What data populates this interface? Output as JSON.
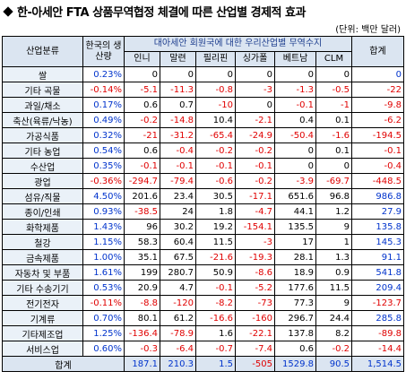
{
  "header": {
    "title": "한-아세안 FTA 상품무역협정 체결에 따른 산업별 경제적 효과",
    "unit": "(단위: 백만 달러)"
  },
  "table": {
    "head": {
      "category": "산업분류",
      "production": "한국의 생산량",
      "group": "대아세안 회원국에 대한 우리산업별 무역수지",
      "countries": [
        "인니",
        "말련",
        "필리핀",
        "싱가폴",
        "베트남",
        "CLM"
      ],
      "total": "합계"
    },
    "rows": [
      [
        "쌀",
        "0.23%",
        "0",
        "0",
        "0",
        "0",
        "0",
        "0",
        "0"
      ],
      [
        "기타 곡물",
        "-0.14%",
        "-5.1",
        "-11.3",
        "-0.8",
        "-3",
        "-1.3",
        "-0.5",
        "-22"
      ],
      [
        "과일/채소",
        "0.17%",
        "0.6",
        "0.7",
        "-10",
        "0",
        "-0.1",
        "-1",
        "-9.8"
      ],
      [
        "축산(육류/낙농)",
        "0.49%",
        "-0.2",
        "-14.8",
        "10.4",
        "-2.1",
        "0.4",
        "0.1",
        "-6.2"
      ],
      [
        "가공식품",
        "0.32%",
        "-21",
        "-31.2",
        "-65.4",
        "-24.9",
        "-50.4",
        "-1.6",
        "-194.5"
      ],
      [
        "기타 농업",
        "0.54%",
        "0.6",
        "-0.4",
        "-0.2",
        "-0.2",
        "0",
        "0.1",
        "-0.1"
      ],
      [
        "수산업",
        "0.35%",
        "-0.1",
        "-0.1",
        "-0.1",
        "-0.1",
        "0",
        "0",
        "-0.4"
      ],
      [
        "광업",
        "-0.36%",
        "-294.7",
        "-79.4",
        "-0.6",
        "-0.2",
        "-3.9",
        "-69.7",
        "-448.5"
      ],
      [
        "섬유/직물",
        "4.50%",
        "201.6",
        "23.4",
        "30.5",
        "-17.1",
        "651.6",
        "96.8",
        "986.8"
      ],
      [
        "종이/인쇄",
        "0.93%",
        "-38.5",
        "24",
        "1.8",
        "-4.7",
        "44.1",
        "1.2",
        "27.9"
      ],
      [
        "화학제품",
        "1.43%",
        "96",
        "30.2",
        "19.2",
        "-154.1",
        "135.5",
        "9",
        "135.8"
      ],
      [
        "철강",
        "1.15%",
        "58.3",
        "60.4",
        "11.5",
        "-3",
        "17",
        "1",
        "145.3"
      ],
      [
        "금속제품",
        "1.00%",
        "35.1",
        "67.5",
        "-21.6",
        "-19.3",
        "28.1",
        "1.3",
        "91.1"
      ],
      [
        "자동차 및 부품",
        "1.61%",
        "199",
        "280.7",
        "50.9",
        "-8.6",
        "18.9",
        "0.9",
        "541.8"
      ],
      [
        "기타 수송기기",
        "0.53%",
        "20.9",
        "4.7",
        "-0.1",
        "-5.2",
        "177.6",
        "11.5",
        "209.4"
      ],
      [
        "전기전자",
        "-0.11%",
        "-8.8",
        "-120",
        "-8.2",
        "-73",
        "77.3",
        "9",
        "-123.7"
      ],
      [
        "기계류",
        "0.70%",
        "80.1",
        "61.2",
        "-16.6",
        "-160",
        "296.7",
        "24.4",
        "285.8"
      ],
      [
        "기타제조업",
        "1.25%",
        "-136.4",
        "-78.9",
        "1.6",
        "-22.1",
        "137.8",
        "8.2",
        "-89.8"
      ],
      [
        "서비스업",
        "0.60%",
        "-0.3",
        "-6.4",
        "-0.7",
        "-7.4",
        "0.6",
        "-0.2",
        "-14.4"
      ]
    ],
    "total_row": {
      "label": "합계",
      "values": [
        "187.1",
        "210.3",
        "1.5",
        "-505",
        "1529.8",
        "90.5",
        "1,514.5"
      ]
    }
  }
}
